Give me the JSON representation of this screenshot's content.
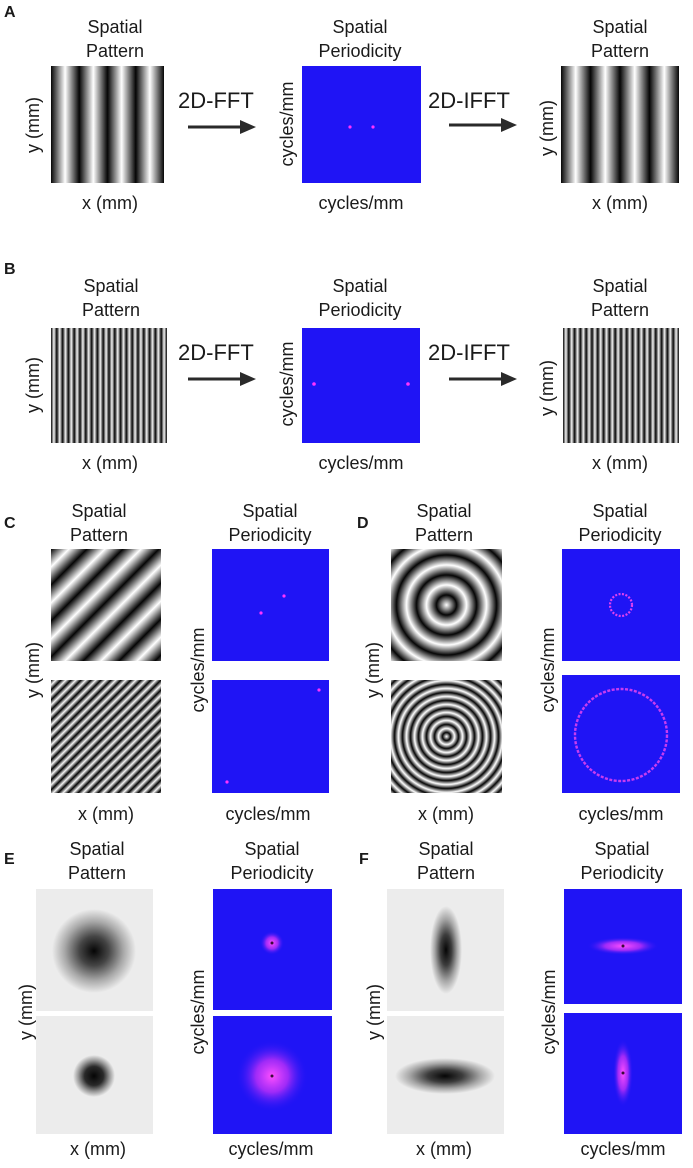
{
  "colors": {
    "spectrum_bg": "#1f14f5",
    "spectrum_peak": "#ff33ff",
    "gauss_bg": "#ececec"
  },
  "panel_letters": [
    "A",
    "B",
    "C",
    "D",
    "E",
    "F"
  ],
  "labels": {
    "spatial": "Spatial",
    "pattern": "Pattern",
    "periodicity": "Periodicity",
    "x_mm": "x (mm)",
    "y_mm": "y (mm)",
    "cycles_mm": "cycles/mm",
    "fft": "2D-FFT",
    "ifft": "2D-IFFT"
  },
  "icons": [
    "arrow-right-icon"
  ]
}
